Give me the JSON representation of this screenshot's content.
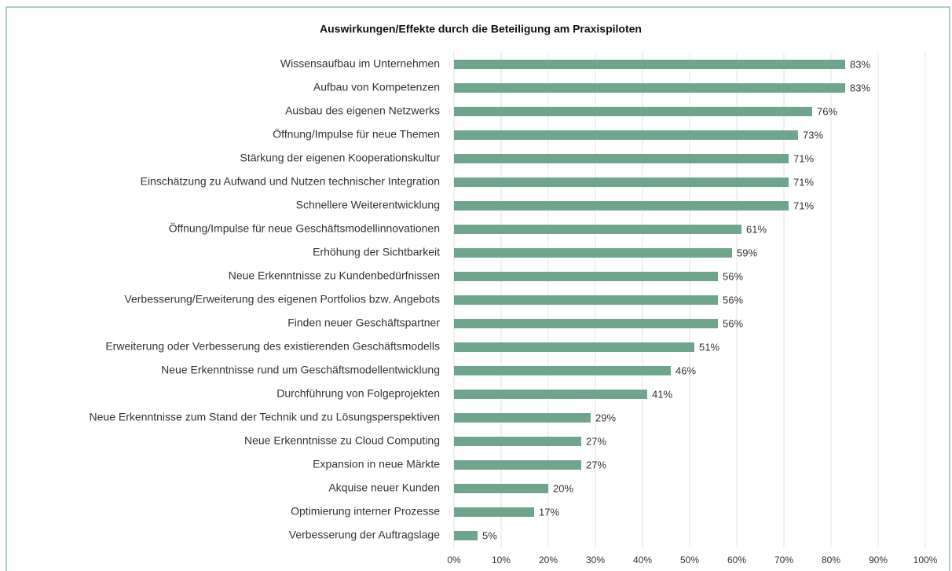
{
  "chart_data": {
    "type": "bar",
    "orientation": "horizontal",
    "title": "Auswirkungen/Effekte durch die Beteiligung am Praxispiloten",
    "categories": [
      "Wissensaufbau im Unternehmen",
      "Aufbau von Kompetenzen",
      "Ausbau des eigenen Netzwerks",
      "Öffnung/Impulse für neue Themen",
      "Stärkung der eigenen Kooperationskultur",
      "Einschätzung zu Aufwand und Nutzen technischer Integration",
      "Schnellere Weiterentwicklung",
      "Öffnung/Impulse für neue Geschäftsmodellinnovationen",
      "Erhöhung der Sichtbarkeit",
      "Neue Erkenntnisse zu Kundenbedürfnissen",
      "Verbesserung/Erweiterung des eigenen Portfolios bzw. Angebots",
      "Finden neuer Geschäftspartner",
      "Erweiterung oder Verbesserung des existierenden Geschäftsmodells",
      "Neue Erkenntnisse rund um Geschäftsmodellentwicklung",
      "Durchführung von Folgeprojekten",
      "Neue Erkenntnisse zum Stand der Technik und zu Lösungsperspektiven",
      "Neue Erkenntnisse zu Cloud Computing",
      "Expansion in neue Märkte",
      "Akquise neuer Kunden",
      "Optimierung interner Prozesse",
      "Verbesserung der Auftragslage"
    ],
    "values": [
      83,
      83,
      76,
      73,
      71,
      71,
      71,
      61,
      59,
      56,
      56,
      56,
      51,
      46,
      41,
      29,
      27,
      27,
      20,
      17,
      5
    ],
    "value_labels": [
      "83%",
      "83%",
      "76%",
      "73%",
      "71%",
      "71%",
      "71%",
      "61%",
      "59%",
      "56%",
      "56%",
      "56%",
      "51%",
      "46%",
      "41%",
      "29%",
      "27%",
      "27%",
      "20%",
      "17%",
      "5%"
    ],
    "color": "#6ea58c",
    "xlim": [
      0,
      100
    ],
    "xticks": [
      {
        "value": 0,
        "label": "0%"
      },
      {
        "value": 10,
        "label": "10%"
      },
      {
        "value": 20,
        "label": "20%"
      },
      {
        "value": 30,
        "label": "30%"
      },
      {
        "value": 40,
        "label": "40%"
      },
      {
        "value": 50,
        "label": "50%"
      },
      {
        "value": 60,
        "label": "60%"
      },
      {
        "value": 70,
        "label": "70%"
      },
      {
        "value": 80,
        "label": "80%"
      },
      {
        "value": 90,
        "label": "90%"
      },
      {
        "value": 100,
        "label": "100%"
      }
    ],
    "grid": true
  }
}
